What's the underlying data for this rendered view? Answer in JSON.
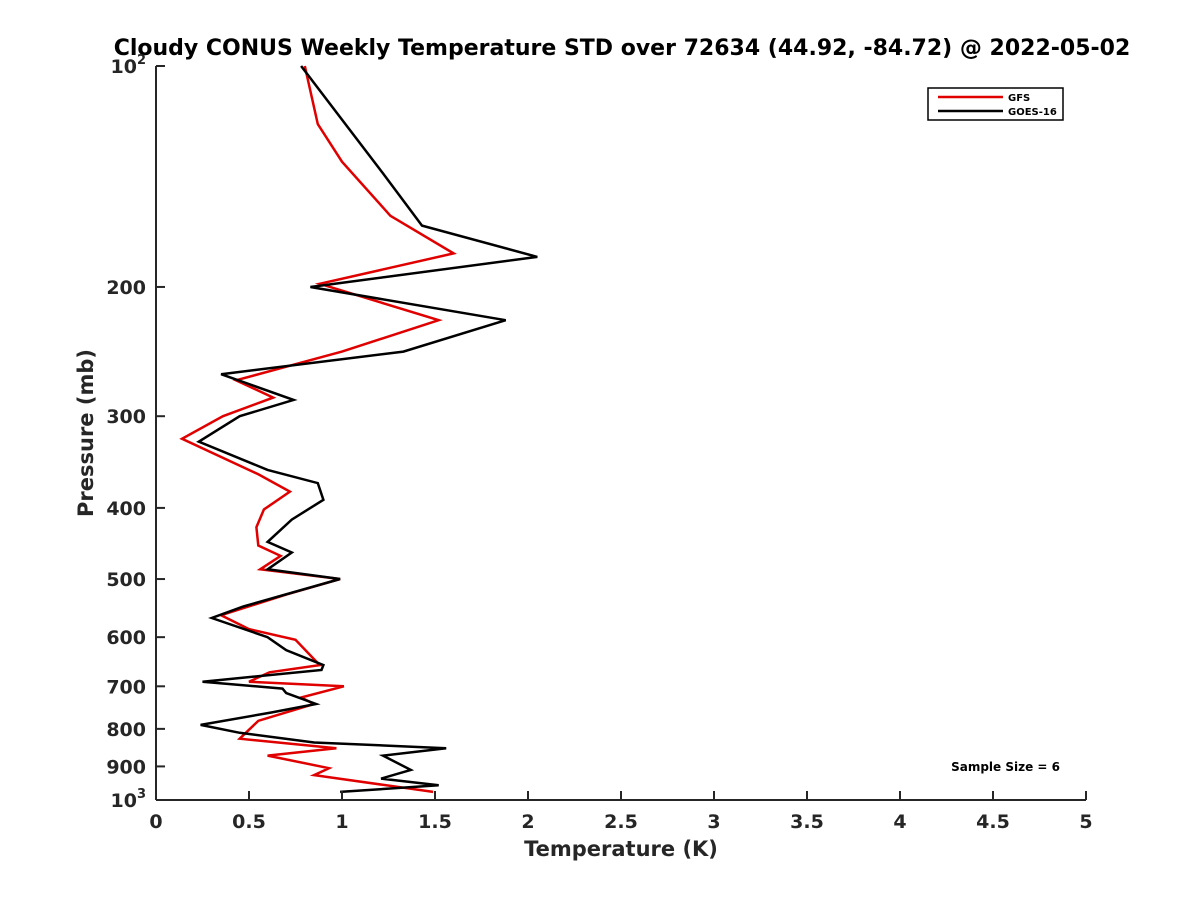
{
  "chart_data": {
    "type": "line",
    "title": "Cloudy CONUS Weekly Temperature STD over 72634 (44.92, -84.72) @ 2022-05-02",
    "xlabel": "Temperature (K)",
    "ylabel": "Pressure (mb)",
    "xlim": [
      0,
      5
    ],
    "ylim": [
      100,
      1000
    ],
    "y_scale": "log",
    "y_reversed": true,
    "x_ticks": [
      0,
      0.5,
      1,
      1.5,
      2,
      2.5,
      3,
      3.5,
      4,
      4.5,
      5
    ],
    "x_tick_labels": [
      "0",
      "0.5",
      "1",
      "1.5",
      "2",
      "2.5",
      "3",
      "3.5",
      "4",
      "4.5",
      "5"
    ],
    "y_ticks": [
      100,
      200,
      300,
      400,
      500,
      600,
      700,
      800,
      900,
      1000
    ],
    "y_tick_labels": [
      {
        "base": "10",
        "exp": "2"
      },
      {
        "base": "200",
        "exp": ""
      },
      {
        "base": "300",
        "exp": ""
      },
      {
        "base": "400",
        "exp": ""
      },
      {
        "base": "500",
        "exp": ""
      },
      {
        "base": "600",
        "exp": ""
      },
      {
        "base": "700",
        "exp": ""
      },
      {
        "base": "800",
        "exp": ""
      },
      {
        "base": "900",
        "exp": ""
      },
      {
        "base": "10",
        "exp": "3"
      }
    ],
    "grid": false,
    "legend_position": "top-right",
    "series": [
      {
        "name": "GFS",
        "color": "#e00000",
        "points": [
          [
            0.8,
            100
          ],
          [
            0.87,
            120
          ],
          [
            1.0,
            135
          ],
          [
            1.26,
            160
          ],
          [
            1.6,
            180
          ],
          [
            0.88,
            198
          ],
          [
            1.52,
            222
          ],
          [
            1.0,
            245
          ],
          [
            0.43,
            268
          ],
          [
            0.63,
            283
          ],
          [
            0.36,
            300
          ],
          [
            0.14,
            322
          ],
          [
            0.55,
            360
          ],
          [
            0.72,
            380
          ],
          [
            0.58,
            402
          ],
          [
            0.54,
            425
          ],
          [
            0.55,
            450
          ],
          [
            0.67,
            465
          ],
          [
            0.56,
            485
          ],
          [
            0.99,
            500
          ],
          [
            0.7,
            525
          ],
          [
            0.35,
            560
          ],
          [
            0.5,
            585
          ],
          [
            0.75,
            605
          ],
          [
            0.88,
            655
          ],
          [
            0.61,
            670
          ],
          [
            0.5,
            690
          ],
          [
            1.01,
            700
          ],
          [
            0.78,
            725
          ],
          [
            0.85,
            740
          ],
          [
            0.55,
            780
          ],
          [
            0.45,
            825
          ],
          [
            0.97,
            850
          ],
          [
            0.6,
            870
          ],
          [
            0.93,
            905
          ],
          [
            0.85,
            925
          ],
          [
            1.49,
            975
          ]
        ]
      },
      {
        "name": "GOES-16",
        "color": "#000000",
        "points": [
          [
            0.78,
            100
          ],
          [
            1.22,
            140
          ],
          [
            1.43,
            165
          ],
          [
            2.05,
            182
          ],
          [
            0.83,
            200
          ],
          [
            1.88,
            222
          ],
          [
            1.33,
            245
          ],
          [
            0.35,
            263
          ],
          [
            0.74,
            285
          ],
          [
            0.45,
            300
          ],
          [
            0.23,
            325
          ],
          [
            0.6,
            355
          ],
          [
            0.87,
            370
          ],
          [
            0.9,
            390
          ],
          [
            0.73,
            415
          ],
          [
            0.6,
            445
          ],
          [
            0.73,
            460
          ],
          [
            0.6,
            485
          ],
          [
            0.99,
            500
          ],
          [
            0.47,
            545
          ],
          [
            0.3,
            565
          ],
          [
            0.6,
            600
          ],
          [
            0.7,
            625
          ],
          [
            0.9,
            655
          ],
          [
            0.89,
            665
          ],
          [
            0.25,
            690
          ],
          [
            0.68,
            705
          ],
          [
            0.7,
            715
          ],
          [
            0.86,
            740
          ],
          [
            0.62,
            760
          ],
          [
            0.24,
            790
          ],
          [
            0.45,
            810
          ],
          [
            0.85,
            835
          ],
          [
            1.56,
            850
          ],
          [
            1.22,
            870
          ],
          [
            1.37,
            910
          ],
          [
            1.21,
            935
          ],
          [
            1.52,
            955
          ],
          [
            0.99,
            975
          ]
        ]
      }
    ],
    "annotation": "Sample Size = 6"
  }
}
